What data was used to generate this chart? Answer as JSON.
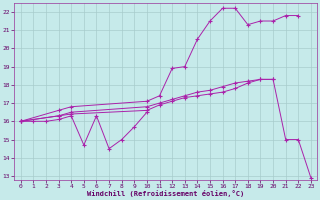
{
  "background_color": "#c6eaea",
  "grid_color": "#a8cccc",
  "line_color": "#aa22aa",
  "xlim": [
    -0.5,
    23.5
  ],
  "ylim": [
    12.8,
    22.5
  ],
  "yticks": [
    13,
    14,
    15,
    16,
    17,
    18,
    19,
    20,
    21,
    22
  ],
  "xticks": [
    0,
    1,
    2,
    3,
    4,
    5,
    6,
    7,
    8,
    9,
    10,
    11,
    12,
    13,
    14,
    15,
    16,
    17,
    18,
    19,
    20,
    21,
    22,
    23
  ],
  "xlabel": "Windchill (Refroidissement éolien,°C)",
  "s1_x": [
    0,
    1,
    2,
    3,
    4,
    5,
    6,
    7,
    8,
    9,
    10
  ],
  "s1_y": [
    16.0,
    16.0,
    16.0,
    16.1,
    16.3,
    14.7,
    16.3,
    14.5,
    15.0,
    15.7,
    16.5
  ],
  "s2_x": [
    0,
    3,
    4,
    10,
    11,
    12,
    13,
    14,
    15,
    16,
    17,
    18,
    19,
    20,
    21,
    22
  ],
  "s2_y": [
    16.0,
    16.6,
    16.8,
    17.1,
    17.4,
    18.9,
    19.0,
    20.5,
    21.5,
    22.2,
    22.2,
    21.3,
    21.5,
    21.5,
    21.8,
    21.8
  ],
  "s3_x": [
    0,
    3,
    4,
    10,
    11,
    12,
    13,
    14,
    15,
    16,
    17,
    18,
    19,
    20
  ],
  "s3_y": [
    16.0,
    16.3,
    16.5,
    16.8,
    17.0,
    17.2,
    17.4,
    17.6,
    17.7,
    17.9,
    18.1,
    18.2,
    18.3,
    18.3
  ],
  "s4_x": [
    0,
    3,
    4,
    10,
    11,
    12,
    13,
    14,
    15,
    16,
    17,
    18,
    19,
    20,
    21,
    22,
    23
  ],
  "s4_y": [
    16.0,
    16.3,
    16.4,
    16.6,
    16.9,
    17.1,
    17.3,
    17.4,
    17.5,
    17.6,
    17.8,
    18.1,
    18.3,
    18.3,
    15.0,
    15.0,
    12.9
  ]
}
